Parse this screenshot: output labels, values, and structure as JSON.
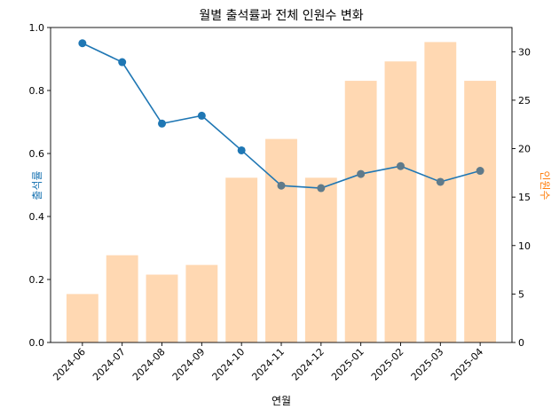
{
  "chart_data": {
    "type": "bar+line",
    "title": "월별 출석률과 전체 인원수 변화",
    "xlabel": "연월",
    "categories": [
      "2024-06",
      "2024-07",
      "2024-08",
      "2024-09",
      "2024-10",
      "2024-11",
      "2024-12",
      "2025-01",
      "2025-02",
      "2025-03",
      "2025-04"
    ],
    "series": [
      {
        "name": "출석률",
        "type": "line",
        "axis": "left",
        "color": "#1f77b4",
        "values": [
          0.95,
          0.89,
          0.695,
          0.72,
          0.61,
          0.498,
          0.49,
          0.535,
          0.56,
          0.51,
          0.545
        ]
      },
      {
        "name": "인원수",
        "type": "bar",
        "axis": "right",
        "color": "#ffd8b2",
        "values": [
          5,
          9,
          7,
          8,
          17,
          21,
          17,
          27,
          29,
          31,
          27
        ]
      }
    ],
    "y_left": {
      "label": "출석률",
      "label_color": "#1f77b4",
      "lim": [
        0,
        1.0
      ],
      "ticks": [
        0.0,
        0.2,
        0.4,
        0.6,
        0.8,
        1.0
      ],
      "tick_labels": [
        "0.0",
        "0.2",
        "0.4",
        "0.6",
        "0.8",
        "1.0"
      ]
    },
    "y_right": {
      "label": "인원수",
      "label_color": "#ff7f0e",
      "lim": [
        0,
        32.5
      ],
      "ticks": [
        0,
        5,
        10,
        15,
        20,
        25,
        30
      ],
      "tick_labels": [
        "0",
        "5",
        "10",
        "15",
        "20",
        "25",
        "30"
      ]
    },
    "grid": false,
    "legend": "none"
  }
}
